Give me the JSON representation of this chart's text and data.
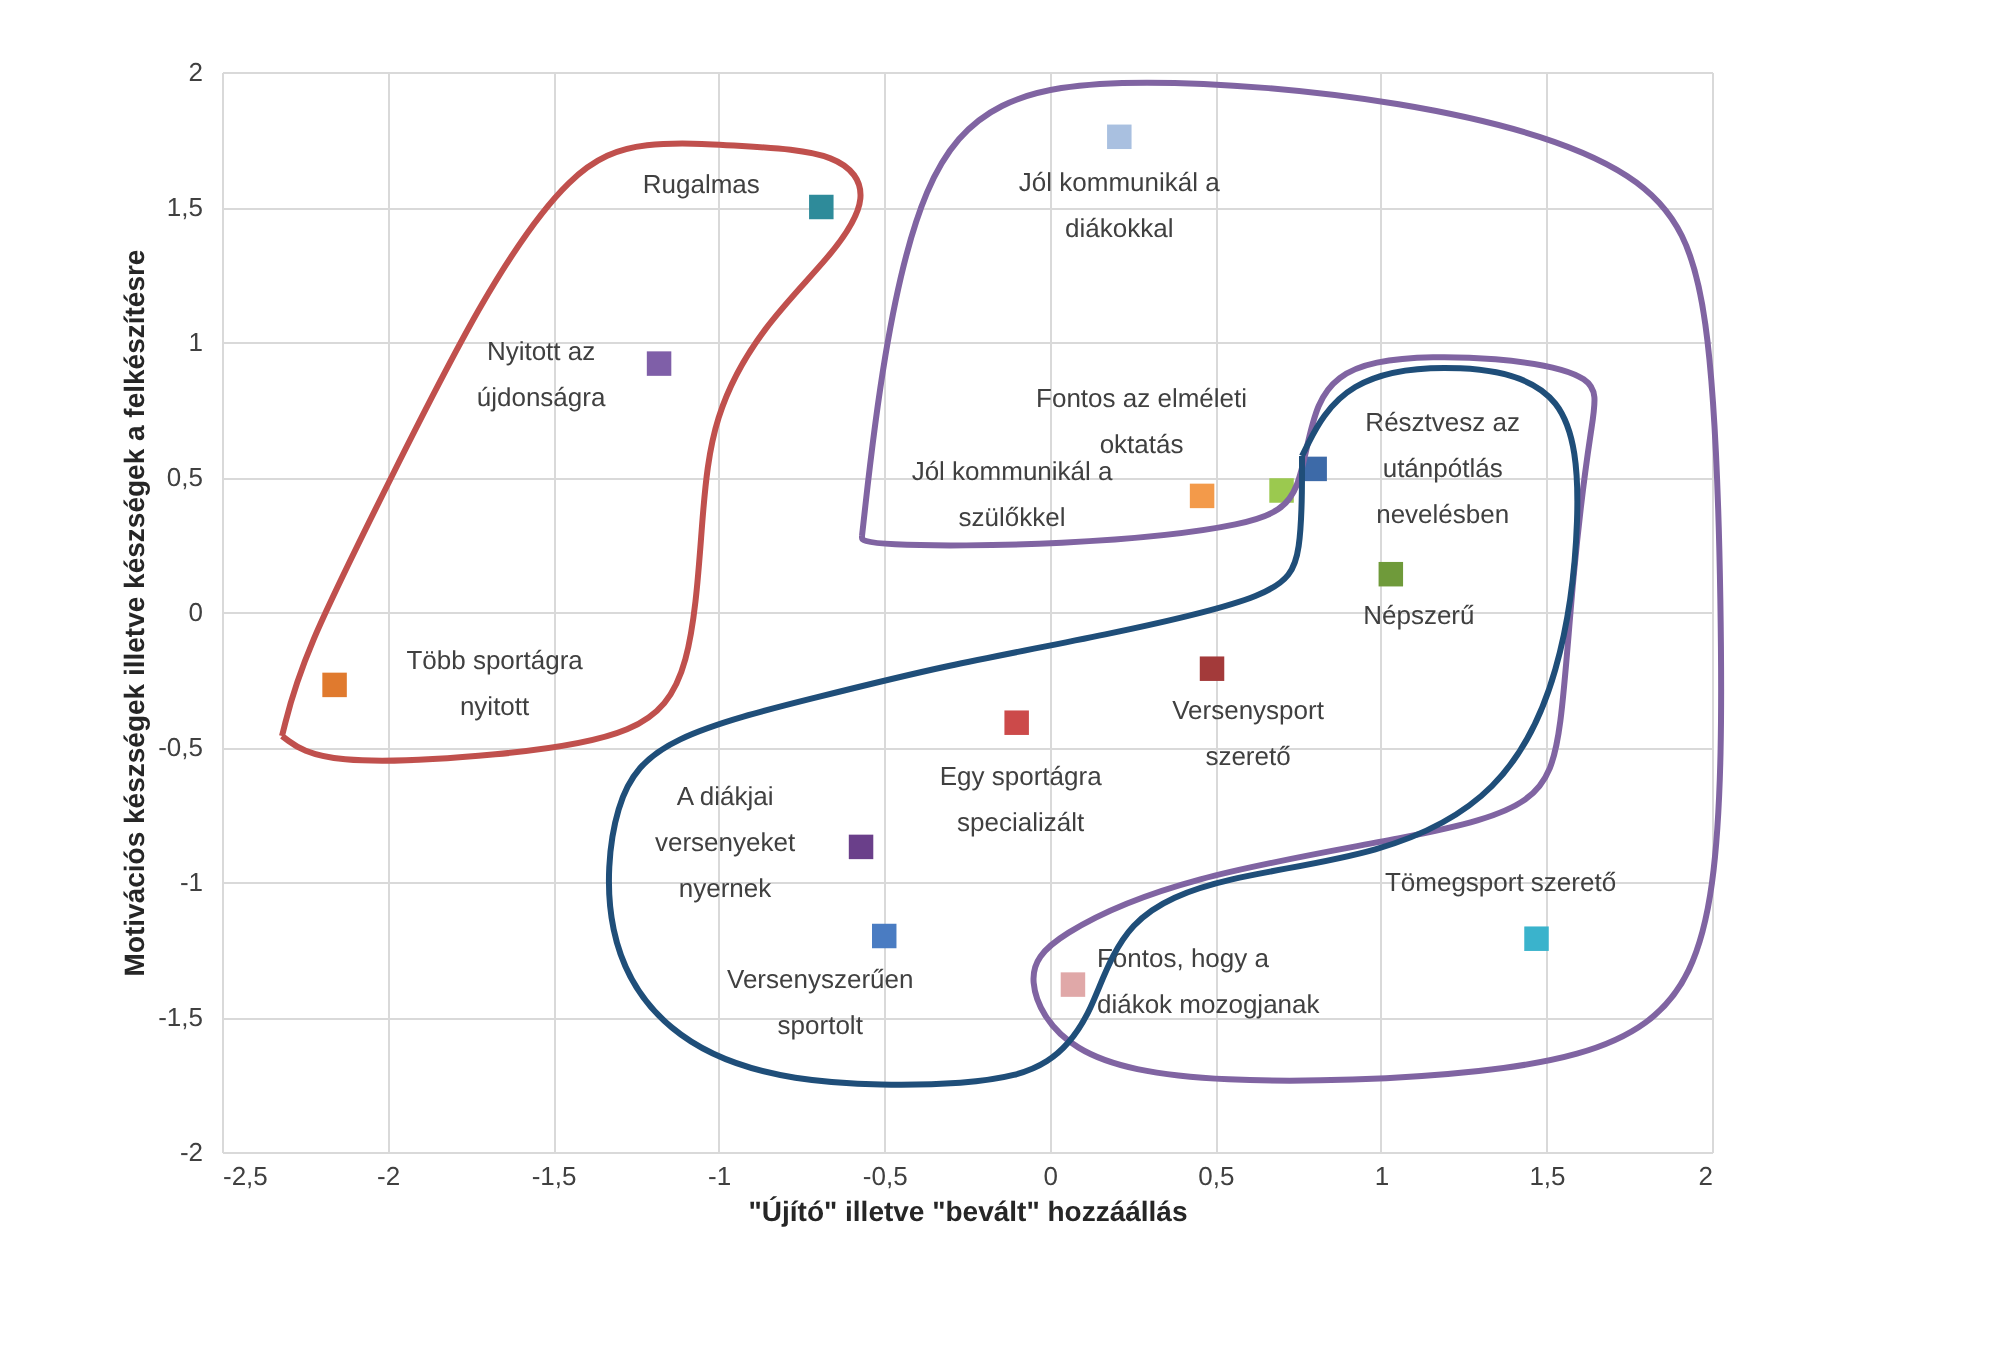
{
  "chart_data": {
    "type": "scatter",
    "xlabel": "\"Újító\" illetve \"bevált\" hozzáállás",
    "ylabel": "Motivációs készségek illetve készségek a felkészítésre",
    "xlim": [
      -2.5,
      2
    ],
    "ylim": [
      -2,
      2
    ],
    "xticks": [
      {
        "value": -2.5,
        "label": "-2,5"
      },
      -2,
      {
        "value": -1.5,
        "label": "-1,5"
      },
      -1,
      {
        "value": -0.5,
        "label": "-0,5"
      },
      0,
      {
        "value": 0.5,
        "label": "0,5"
      },
      1,
      {
        "value": 1.5,
        "label": "1,5"
      },
      2
    ],
    "yticks": [
      -2,
      {
        "value": -1.5,
        "label": "-1,5"
      },
      -1,
      {
        "value": -0.5,
        "label": "-0,5"
      },
      0,
      {
        "value": 0.5,
        "label": "0,5"
      },
      1,
      {
        "value": 1.5,
        "label": "1,5"
      },
      2
    ],
    "grid": true,
    "marker": "square",
    "series": [
      {
        "name": "Rugalmas",
        "color": "#2e8b9a",
        "x": [
          -0.69
        ],
        "values": [
          1.5
        ]
      },
      {
        "name": "Nyitott az újdonságra",
        "color": "#7f5fa8",
        "x": [
          -1.18
        ],
        "values": [
          0.92
        ]
      },
      {
        "name": "Több sportágra nyitott",
        "color": "#e07a2e",
        "x": [
          -2.16
        ],
        "values": [
          -0.27
        ]
      },
      {
        "name": "Jól kommunikál a diákokkal",
        "color": "#a9c0e0",
        "x": [
          0.21
        ],
        "values": [
          1.76
        ]
      },
      {
        "name": "Jól kommunikál a szülőkkel",
        "color": "#f39a4a",
        "x": [
          0.46
        ],
        "values": [
          0.43
        ]
      },
      {
        "name": "Fontos az elméleti oktatás",
        "color": "#9bc94f",
        "x": [
          0.7
        ],
        "values": [
          0.45
        ]
      },
      {
        "name": "Résztvesz az utánpótlás nevelésben",
        "color": "#3d6aa8",
        "x": [
          0.8
        ],
        "values": [
          0.53
        ]
      },
      {
        "name": "Népszerű",
        "color": "#6f9a3a",
        "x": [
          1.03
        ],
        "values": [
          0.14
        ]
      },
      {
        "name": "Versenysport szerető",
        "color": "#a33a3a",
        "x": [
          0.49
        ],
        "values": [
          -0.21
        ]
      },
      {
        "name": "Egy sportágra specializált",
        "color": "#cc4a4a",
        "x": [
          -0.1
        ],
        "values": [
          -0.41
        ]
      },
      {
        "name": "A diákjai versenyeket nyernek",
        "color": "#6a3f8a",
        "x": [
          -0.57
        ],
        "values": [
          -0.87
        ]
      },
      {
        "name": "Versenyszerűen sportolt",
        "color": "#4a7cc2",
        "x": [
          -0.5
        ],
        "values": [
          -1.2
        ]
      },
      {
        "name": "Fontos, hogy a diákok mozogjanak",
        "color": "#e0a8a8",
        "x": [
          0.07
        ],
        "values": [
          -1.38
        ]
      },
      {
        "name": "Tömegsport szerető",
        "color": "#3ab3cc",
        "x": [
          1.47
        ],
        "values": [
          -1.21
        ]
      }
    ]
  }
}
